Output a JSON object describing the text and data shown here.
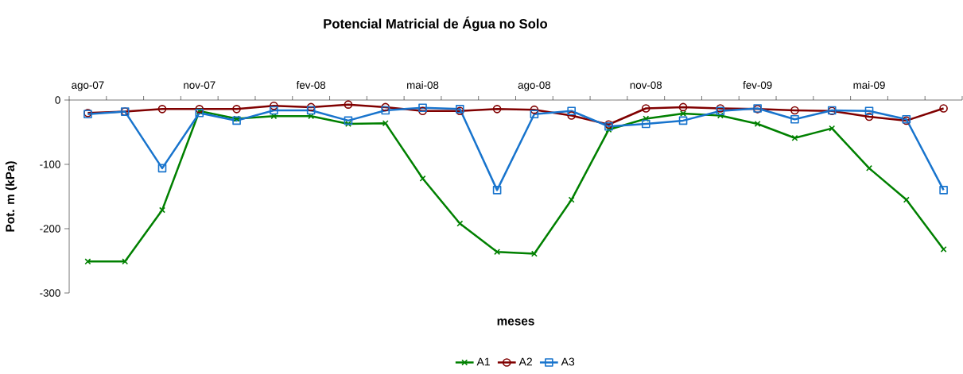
{
  "chart_data": {
    "type": "line",
    "title": "Potencial Matricial de Água no Solo",
    "xlabel": "meses",
    "ylabel": "Pot. m (kPa)",
    "categories": [
      "ago-07",
      null,
      null,
      "nov-07",
      null,
      null,
      "fev-08",
      null,
      null,
      "mai-08",
      null,
      null,
      "ago-08",
      null,
      null,
      "nov-08",
      null,
      null,
      "fev-09",
      null,
      null,
      "mai-09",
      null,
      null
    ],
    "series": [
      {
        "name": "A1",
        "color": "#008000",
        "marker": "cross",
        "values": [
          -251,
          -251,
          -171,
          -17,
          -29,
          -25,
          -25,
          -37,
          -36,
          -122,
          -192,
          -236,
          -239,
          -155,
          -46,
          -29,
          -21,
          -24,
          -37,
          -59,
          -44,
          -106,
          -155,
          -232
        ]
      },
      {
        "name": "A2",
        "color": "#800000",
        "marker": "circle",
        "values": [
          -20,
          -18,
          -14,
          -14,
          -14,
          -9,
          -11,
          -7,
          -11,
          -17,
          -17,
          -14,
          -15,
          -24,
          -38,
          -13,
          -11,
          -13,
          -14,
          -16,
          -17,
          -26,
          -32,
          -13
        ]
      },
      {
        "name": "A3",
        "color": "#1874cd",
        "marker": "square",
        "values": [
          -22,
          -18,
          -106,
          -20,
          -32,
          -16,
          -16,
          -32,
          -16,
          -12,
          -14,
          -140,
          -22,
          -17,
          -41,
          -37,
          -32,
          -17,
          -13,
          -30,
          -16,
          -17,
          -30,
          -140
        ]
      }
    ],
    "ylim": [
      -300,
      0
    ],
    "yticks": [
      0,
      -100,
      -200,
      -300
    ],
    "legend": "bottom",
    "line_style": "solid"
  }
}
